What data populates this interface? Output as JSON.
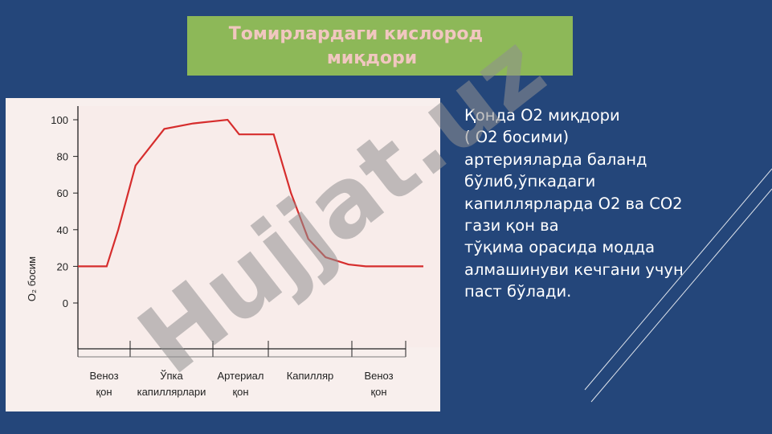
{
  "slide": {
    "title_line1": "Томирлардаги кислород",
    "title_line2": "миқдори",
    "body_lines": [
      " Қонда  О2 миқдори",
      "( О2 босими)",
      "артерияларда баланд",
      "бўлиб,ўпкадаги",
      "капиллярларда О2 ва СО2",
      "гази қон ва",
      "тўқима орасида модда",
      "алмашинуви кечгани учун",
      "паст бўлади."
    ],
    "watermark_text": "Hujjat.uz"
  },
  "colors": {
    "background": "#24467a",
    "title_box": "#8db858",
    "title_text": "#f1c7c0",
    "curve": "#d62d2d",
    "chart_bg": "#f8efed"
  },
  "chart_data": {
    "type": "line",
    "ylabel": "O₂ босим",
    "yticks": [
      "100",
      "80",
      "60",
      "40",
      "20",
      "0"
    ],
    "ylim": [
      0,
      100
    ],
    "segments": [
      {
        "label_line1": "Веноз",
        "label_line2": "қон"
      },
      {
        "label_line1": "Ўпка",
        "label_line2": "капиллярлари"
      },
      {
        "label_line1": "Артериал",
        "label_line2": "қон"
      },
      {
        "label_line1": "Капилляр",
        "label_line2": ""
      },
      {
        "label_line1": "Веноз",
        "label_line2": "қон"
      }
    ],
    "series": [
      {
        "x": [
          0,
          0.5,
          0.7,
          1,
          1.5,
          2,
          2.3,
          2.6,
          2.8,
          3,
          3.4,
          3.7,
          4,
          4.3,
          4.7,
          5,
          5.6,
          6
        ],
        "values": [
          20,
          20,
          40,
          75,
          95,
          98,
          99,
          100,
          92,
          92,
          92,
          60,
          35,
          25,
          21,
          20,
          20,
          20
        ]
      }
    ]
  }
}
